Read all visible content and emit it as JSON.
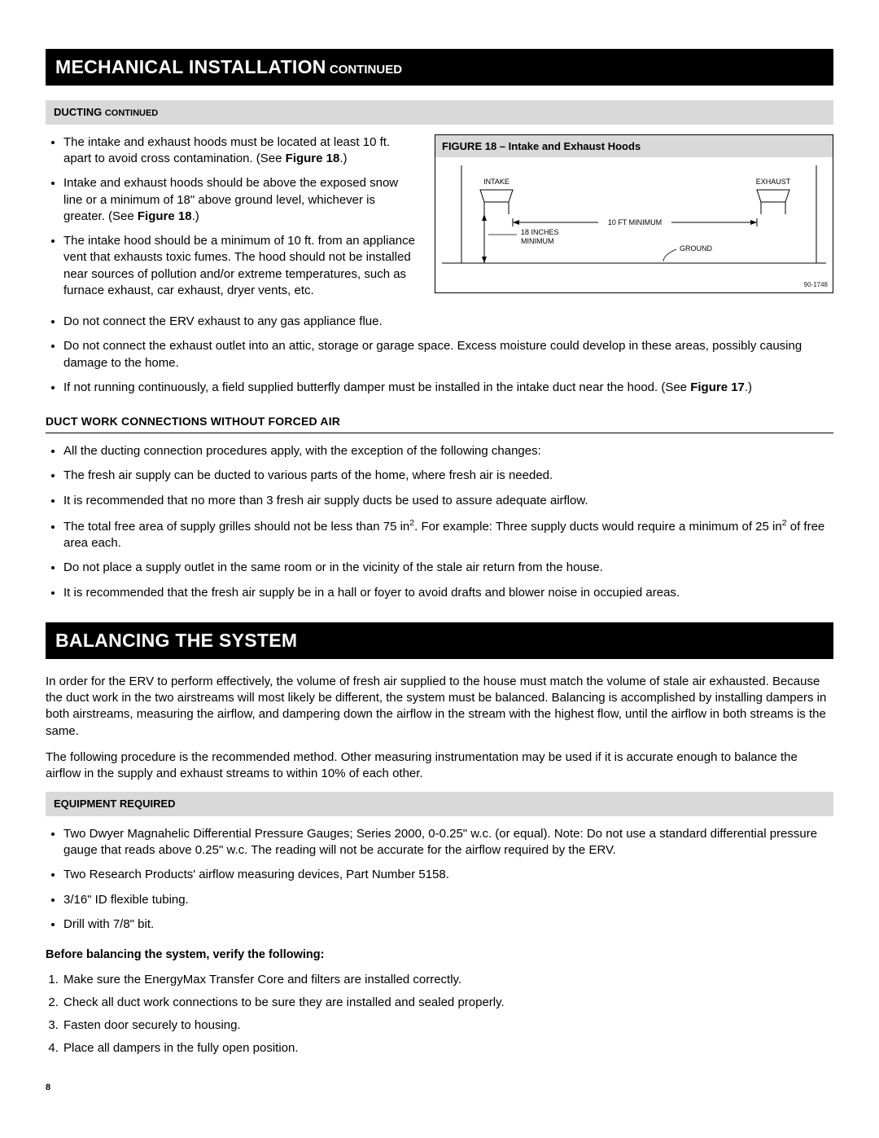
{
  "header1": {
    "title": "MECHANICAL INSTALLATION",
    "cont": "CONTINUED"
  },
  "graybar1": {
    "title": "DUCTING",
    "cont": "CONTINUED"
  },
  "bullets_top_left": [
    [
      "The intake and exhaust hoods must be located at least 10 ft. apart to avoid cross contamination. (See ",
      "Figure 18",
      ".)"
    ],
    [
      "Intake and exhaust hoods should be above the exposed snow line or a minimum of 18\" above ground level, whichever is greater. (See ",
      "Figure 18",
      ".)"
    ],
    [
      "The intake hood should be a minimum of 10 ft. from an appliance vent that exhausts toxic fumes. The hood should not be installed near sources of pollution and/or extreme temperatures, such as furnace exhaust, car exhaust, dryer vents, etc.",
      "",
      ""
    ]
  ],
  "figure": {
    "title": "FIGURE 18 – Intake and Exhaust Hoods",
    "intake_label": "INTAKE",
    "exhaust_label": "EXHAUST",
    "min10ft": "10 FT MINIMUM",
    "inches18a": "18 INCHES",
    "inches18b": "MINIMUM",
    "ground": "GROUND",
    "code": "90-1748",
    "label_fontsize": 9,
    "stroke": "#000000",
    "bg": "#ffffff"
  },
  "bullets_full": [
    "Do not connect the ERV exhaust to any gas appliance flue.",
    "Do not connect the exhaust outlet into an attic, storage or garage space. Excess moisture could develop in these areas, possibly causing damage to the home.",
    [
      "If not running continuously, a field supplied butterfly damper must be installed in the intake duct near the hood. (See ",
      "Figure 17",
      ".)"
    ]
  ],
  "subheading1": "DUCT WORK CONNECTIONS WITHOUT FORCED AIR",
  "bullets_noforced": [
    "All the ducting connection procedures apply, with the exception of the following changes:",
    "The fresh air supply can be ducted to various parts of the home, where fresh air is needed.",
    "It is recommended that no more than 3 fresh air supply ducts be used to assure adequate airflow.",
    "__SUPPLY_GRILLES__",
    "Do not place a supply outlet in the same room or in the vicinity of the stale air return from the house.",
    "It is recommended that the fresh air supply be in a hall or foyer to avoid drafts and blower noise in occupied areas."
  ],
  "supply_grilles": {
    "a": "The total free area of supply grilles should not be less than 75 in",
    "b": ". For example: Three supply ducts would require a minimum of 25 in",
    "c": " of free area each."
  },
  "header2": {
    "title": "BALANCING THE SYSTEM"
  },
  "balancing_para1": "In order for the ERV to perform effectively, the volume of fresh air supplied to the house must match the volume of stale air exhausted. Because the duct work in the two airstreams will most likely be different, the system must be balanced. Balancing is accomplished by installing dampers in both airstreams, measuring the airflow, and dampering down the airflow in the stream with the highest flow, until the airflow in both streams is the same.",
  "balancing_para2": "The following procedure is the recommended method. Other measuring instrumentation may be used if it is accurate enough to balance the airflow in the supply and exhaust streams to within 10% of each other.",
  "graybar2": {
    "title": "EQUIPMENT REQUIRED"
  },
  "bullets_equip": [
    "Two Dwyer Magnahelic Differential Pressure Gauges; Series 2000, 0-0.25\" w.c. (or equal). Note: Do not use a standard differential pressure gauge that reads above 0.25\" w.c. The reading will not be accurate for the airflow required by the ERV.",
    "Two Research Products' airflow measuring devices, Part Number 5158.",
    "3/16\" ID flexible tubing.",
    "Drill with 7/8\" bit."
  ],
  "before_heading": "Before balancing the system, verify the following:",
  "numbered_before": [
    "Make sure the EnergyMax Transfer Core and filters are installed correctly.",
    "Check all duct work connections to be sure they are installed and sealed properly.",
    "Fasten door securely to housing.",
    "Place all dampers in the fully open position."
  ],
  "page_number": "8"
}
